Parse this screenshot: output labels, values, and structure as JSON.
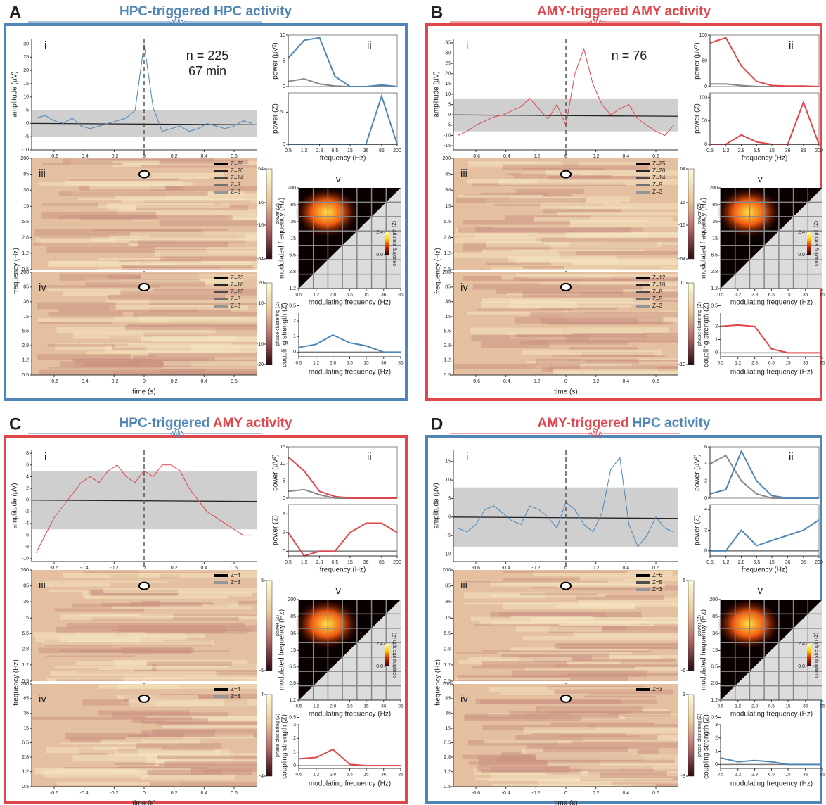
{
  "common": {
    "sublabels": [
      "i",
      "ii",
      "iii",
      "iv",
      "v"
    ],
    "amplitude_label": "amplitude (µV)",
    "power_label": "power (µV²)",
    "powerz_label": "power (Z)",
    "freq_label": "frequency (Hz)",
    "time_label": "time (s)",
    "phase_label": "phase clustering (Z)",
    "coupling_label": "coupling strength (Z)",
    "modulated_label": "modulated frequency (Hz)",
    "modulating_label": "modulating frequency (Hz)",
    "cbar_v_ticks": [
      {
        "value": 2.4,
        "label": "2.4"
      },
      {
        "value": 0,
        "label": "0.0"
      }
    ],
    "time_ticks": [
      -0.6,
      -0.4,
      -0.2,
      0,
      0.2,
      0.4,
      0.6
    ],
    "time_lim": [
      -0.75,
      0.75
    ],
    "time_x": [
      -0.72,
      -0.66,
      -0.6,
      -0.54,
      -0.48,
      -0.42,
      -0.36,
      -0.3,
      -0.24,
      -0.18,
      -0.12,
      -0.06,
      0,
      0.06,
      0.12,
      0.18,
      0.24,
      0.3,
      0.36,
      0.42,
      0.48,
      0.54,
      0.6,
      0.66,
      0.72
    ],
    "freq_ticks": [
      0.5,
      1.2,
      2.8,
      6.5,
      15,
      36,
      85,
      200
    ],
    "freq_lim": [
      0.5,
      200
    ],
    "mod_ticks": [
      0.5,
      1.2,
      2.8,
      6.5,
      15,
      36,
      85
    ],
    "mod_lim": [
      0.5,
      85
    ]
  },
  "panels": [
    {
      "letter": "A",
      "frame_color": "#4f86b5",
      "title": [
        {
          "text": "HPC-triggered",
          "color": "#4f86b5"
        },
        {
          "text": "HPC activity",
          "color": "#4f86b5"
        }
      ],
      "note": [
        "n = 225",
        "67 min"
      ],
      "i": {
        "ylim": [
          -10,
          32
        ],
        "yticks": [
          30,
          25,
          20,
          15,
          10,
          5,
          0,
          -5,
          -10
        ],
        "band": 5,
        "color": "#4f86b5",
        "values": [
          2,
          3,
          1,
          0,
          2,
          -1,
          -2,
          -1,
          0,
          1,
          2,
          5,
          30,
          6,
          -3,
          -2,
          -1,
          -3,
          -2,
          0,
          -1,
          -2,
          -1,
          1,
          0
        ]
      },
      "ii": {
        "ylim": [
          0,
          10
        ],
        "yticks": [
          0,
          5,
          10
        ],
        "values": [
          5.5,
          9,
          9.5,
          2,
          0,
          0,
          0.3,
          0
        ],
        "gray": [
          1,
          1.5,
          0.5,
          0.1,
          0,
          0,
          0,
          0
        ],
        "zlim": [
          0,
          80
        ],
        "zticks": [
          0,
          50
        ],
        "zvalues": [
          0,
          0,
          0,
          0,
          0,
          0,
          75,
          0
        ],
        "zgray": [
          0,
          0,
          0,
          0,
          0,
          0,
          0,
          0
        ],
        "color": "#4f86b5"
      },
      "iii": {
        "legend": [
          "Z=25",
          "Z=20",
          "Z=14",
          "Z=9",
          "Z=3"
        ],
        "cbar_ticks": [
          64,
          16,
          -16,
          -64
        ]
      },
      "iv": {
        "legend": [
          "Z=23",
          "Z=18",
          "Z=13",
          "Z=8",
          "Z=3"
        ],
        "cbar_ticks": [
          20,
          10,
          -10,
          -20
        ]
      },
      "v": {
        "modulated_color": "#4f86b5",
        "modulating_color": "#4f86b5",
        "color": "#4f86b5",
        "ylim": [
          -0.3,
          2.5
        ],
        "yticks": [
          0,
          1,
          2
        ],
        "values": [
          0.3,
          0.5,
          1.1,
          0.6,
          0.4,
          0,
          0
        ]
      }
    },
    {
      "letter": "B",
      "frame_color": "#e0474c",
      "title": [
        {
          "text": "AMY-triggered",
          "color": "#e0474c"
        },
        {
          "text": "AMY activity",
          "color": "#e0474c"
        }
      ],
      "note": [
        "n = 76"
      ],
      "i": {
        "ylim": [
          -17,
          37
        ],
        "yticks": [
          35,
          30,
          25,
          20,
          15,
          10,
          5,
          0,
          -5,
          -10,
          -15
        ],
        "band": 8,
        "color": "#e0474c",
        "values": [
          -10,
          -8,
          -5,
          -3,
          -1,
          0,
          2,
          4,
          8,
          3,
          -2,
          5,
          -5,
          20,
          32,
          15,
          5,
          0,
          3,
          5,
          -2,
          -5,
          -8,
          -10,
          -5
        ]
      },
      "ii": {
        "ylim": [
          0,
          100
        ],
        "yticks": [
          0,
          50,
          100
        ],
        "values": [
          85,
          95,
          40,
          10,
          2,
          1,
          1,
          0
        ],
        "gray": [
          5,
          5,
          2,
          0,
          0,
          0,
          0,
          0
        ],
        "zlim": [
          0,
          110
        ],
        "zticks": [
          0,
          50,
          100
        ],
        "zvalues": [
          0,
          0,
          20,
          5,
          0,
          0,
          90,
          0
        ],
        "zgray": [
          0,
          0,
          0,
          0,
          0,
          0,
          0,
          0
        ],
        "color": "#e0474c"
      },
      "iii": {
        "legend": [
          "Z=25",
          "Z=20",
          "Z=14",
          "Z=9",
          "Z=3"
        ],
        "cbar_ticks": [
          64,
          16,
          -16,
          -64
        ]
      },
      "iv": {
        "legend": [
          "Z=12",
          "Z=10",
          "Z=8",
          "Z=5",
          "Z=3"
        ],
        "cbar_ticks": [
          10,
          -10
        ]
      },
      "v": {
        "modulated_color": "#e0474c",
        "modulating_color": "#e0474c",
        "color": "#e0474c",
        "ylim": [
          -0.3,
          3
        ],
        "yticks": [
          0,
          1,
          2
        ],
        "values": [
          2,
          2.1,
          2,
          0.3,
          0,
          0,
          0
        ]
      }
    },
    {
      "letter": "C",
      "frame_color": "#e0474c",
      "title": [
        {
          "text": "HPC-triggered",
          "color": "#4f86b5"
        },
        {
          "text": "AMY activity",
          "color": "#e0474c"
        }
      ],
      "i": {
        "ylim": [
          -10.5,
          8.5
        ],
        "yticks": [
          8,
          6,
          4,
          2,
          0,
          -2,
          -4,
          -6,
          -8,
          -10
        ],
        "band": 5,
        "color": "#e0474c",
        "values": [
          -9,
          -6,
          -3,
          -1,
          1,
          3,
          4,
          3,
          5,
          6,
          4,
          3,
          5,
          4,
          6,
          6,
          5,
          2,
          0,
          -2,
          -3,
          -4,
          -5,
          -6,
          -6
        ]
      },
      "ii": {
        "ylim": [
          0,
          15
        ],
        "yticks": [
          0,
          5,
          10,
          15
        ],
        "values": [
          12,
          8,
          2,
          0.5,
          0,
          0,
          0,
          0
        ],
        "gray": [
          2,
          2.5,
          1,
          0,
          0,
          0,
          0,
          0
        ],
        "zlim": [
          -0.5,
          5
        ],
        "zticks": [
          0,
          2,
          4
        ],
        "zvalues": [
          2,
          -0.5,
          0,
          0,
          2,
          3,
          3,
          2
        ],
        "zgray": [
          0,
          0,
          0,
          0,
          0,
          0,
          0,
          0
        ],
        "color": "#e0474c"
      },
      "iii": {
        "legend": [
          "Z=4",
          "Z=3"
        ],
        "cbar_ticks": [
          5,
          -5
        ]
      },
      "iv": {
        "legend": [
          "Z=4",
          "Z=3"
        ],
        "cbar_ticks": [
          4,
          -4
        ]
      },
      "v": {
        "modulated_color": "#e0474c",
        "modulating_color": "#4f86b5",
        "color": "#e0474c",
        "ylim": [
          -0.2,
          3
        ],
        "yticks": [
          0,
          1,
          2,
          3
        ],
        "values": [
          0.5,
          0.6,
          1.2,
          0.1,
          0,
          0,
          0
        ]
      }
    },
    {
      "letter": "D",
      "frame_color": "#4f86b5",
      "title": [
        {
          "text": "AMY-triggered",
          "color": "#e0474c"
        },
        {
          "text": "HPC activity",
          "color": "#4f86b5"
        }
      ],
      "i": {
        "ylim": [
          -12,
          18
        ],
        "yticks": [
          15,
          10,
          5,
          0,
          -5,
          -10
        ],
        "band": 8,
        "color": "#4f86b5",
        "values": [
          -3,
          -4,
          -2,
          2,
          3,
          1,
          -1,
          -2,
          3,
          2,
          0,
          -3,
          4,
          2,
          -2,
          -4,
          1,
          13,
          16,
          -2,
          -8,
          -5,
          0,
          -3,
          -4
        ]
      },
      "ii": {
        "ylim": [
          0,
          6
        ],
        "yticks": [
          0,
          2,
          4,
          6
        ],
        "values": [
          0.5,
          1,
          5.5,
          2,
          0.3,
          0,
          0,
          0
        ],
        "gray": [
          4,
          5,
          2,
          0.5,
          0,
          0,
          0,
          0
        ],
        "zlim": [
          -0.5,
          4.5
        ],
        "zticks": [
          0,
          2,
          4
        ],
        "zvalues": [
          0,
          0,
          2,
          0.5,
          1,
          1.5,
          2,
          3
        ],
        "zgray": [
          0,
          0,
          0,
          0,
          0,
          0,
          0,
          0
        ],
        "color": "#4f86b5"
      },
      "iii": {
        "legend": [
          "Z=6",
          "Z=5",
          "Z=3"
        ],
        "cbar_ticks": [
          6,
          -6
        ]
      },
      "iv": {
        "legend": [
          "Z=3"
        ],
        "cbar_ticks": [
          3,
          -3
        ]
      },
      "v": {
        "modulated_color": "#4f86b5",
        "modulating_color": "#e0474c",
        "color": "#4f86b5",
        "ylim": [
          -0.3,
          3
        ],
        "yticks": [
          0,
          1,
          2,
          3
        ],
        "values": [
          0.5,
          0.2,
          0.3,
          0.2,
          0,
          0,
          0
        ]
      }
    }
  ]
}
